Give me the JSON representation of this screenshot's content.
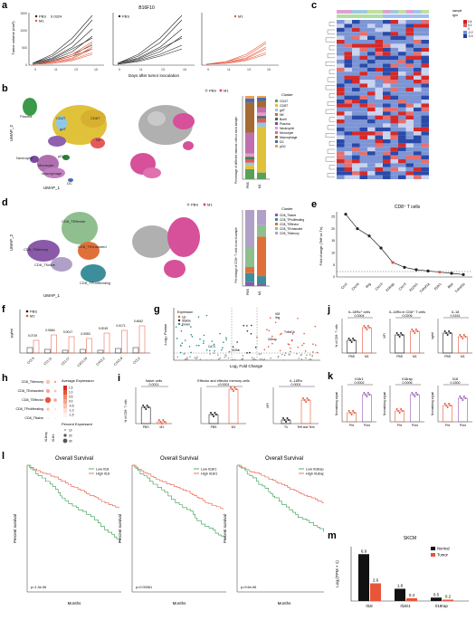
{
  "panels": {
    "a": {
      "letter": "a",
      "title": "B16F10",
      "ylabel": "Tumor volume (mm³)",
      "xlabel": "Days after tumor inoculation",
      "pvalue": "0.0324",
      "legend_pbs": "PBS",
      "legend_m1": "M1",
      "xticks": [
        "9",
        "11",
        "13",
        "15"
      ],
      "yticks": [
        "1500",
        "1000",
        "500",
        "0"
      ]
    },
    "b": {
      "letter": "b",
      "xlabel": "UMAP_1",
      "ylabel": "UMAP_2",
      "labels": [
        "Plasma",
        "CD4T",
        "CD8T",
        "gdT",
        "NK",
        "Neutrophil",
        "pDC",
        "Monocyte",
        "Macrophage",
        "DC"
      ],
      "legend_pbs": "PBS",
      "legend_m1": "M1",
      "bar_ylabel": "Percentage of different immune cells in each sample",
      "cluster_title": "Cluster",
      "clusters": [
        "CD4T",
        "CD8T",
        "gdT",
        "NK",
        "Bcell",
        "Plasma",
        "Neutrophil",
        "Monocyte",
        "Macrophage",
        "DC",
        "pDC"
      ],
      "cluster_colors": [
        "#5aa05a",
        "#e0c23a",
        "#8fc8e6",
        "#e35a5a",
        "#2f7d3a",
        "#7b4aa0",
        "#e0a0c0",
        "#c070b0",
        "#a46a32",
        "#4a6ab0",
        "#f0a050"
      ],
      "bar_x": [
        "PBS",
        "M1"
      ]
    },
    "c": {
      "letter": "c",
      "legend_sample": "sample",
      "legend_type": "type",
      "scale": [
        "0.4",
        "0.2",
        "0",
        "-0.2",
        "-0.4"
      ]
    },
    "d": {
      "letter": "d",
      "xlabel": "UMAP_1",
      "ylabel": "UMAP_2",
      "labels": [
        "CD8_TEffector",
        "CD8_TMemory",
        "CD8_TExhausted",
        "CD8_TNaive",
        "CD8_TProliferating"
      ],
      "legend_pbs": "PBS",
      "legend_m1": "M1",
      "bar_ylabel": "Percentage of CD8+ T cells in each sample",
      "cluster_title": "Cluster",
      "clusters": [
        "CD8_TNaive",
        "CD8_TProliferating",
        "CD8_TEffector",
        "CD8_TExhausted",
        "CD8_TMemory"
      ],
      "cluster_colors": [
        "#8a5aa8",
        "#3c8e9a",
        "#e0703a",
        "#8fbf8f",
        "#b0a0c8"
      ],
      "bar_x": [
        "PBS",
        "M1"
      ]
    },
    "e": {
      "letter": "e",
      "title": "CD8⁺ T cells",
      "ylabel": "Fold change (Teff vs Tn)",
      "genes": [
        "Ccr2",
        "Cxcr6",
        "Ifng",
        "Cxcr3",
        "Il18rap",
        "Cxcr3",
        "Il12rb1",
        "Tnfrsf1a",
        "Il18r1",
        "Il6st",
        "Tnfrsf1b"
      ],
      "values": [
        26,
        20,
        17,
        12,
        6,
        4,
        3,
        2.5,
        2,
        1.5,
        1
      ],
      "yticks": [
        "25",
        "20",
        "15",
        "10",
        "5",
        "0"
      ]
    },
    "f": {
      "letter": "f",
      "ylabel": "pg/ml",
      "legend_pbs": "PBS",
      "legend_m1": "M1",
      "categories": [
        "CCL5",
        "CCL11",
        "CCL17",
        "CXCL10",
        "CXCL2",
        "CXCL9",
        "CCL2"
      ],
      "pvalues": [
        "0.0719",
        "0.0664",
        "0.0017",
        "0.0053",
        "0.0019",
        "0.0171",
        "0.4642"
      ]
    },
    "g": {
      "letter": "g",
      "xlabel": "Log₂ Fold Change",
      "ylabel": "-Log₁₀ Pvalue",
      "legend_title": "Expression",
      "legend_up": "Up",
      "legend_stable": "Stable",
      "legend_down": "Down",
      "genes": [
        "Il18",
        "Ifng",
        "Tnfrsf1b",
        "Il18rap",
        "Cd74",
        "Il12b"
      ]
    },
    "h": {
      "letter": "h",
      "rows": [
        "CD8_TMemory",
        "CD8_TExhausted",
        "CD8_TEffector",
        "CD8_TProliferating",
        "CD8_TNaive"
      ],
      "xlabels": [
        "Il18rap",
        "Il18r1"
      ],
      "avg_title": "Average Expression",
      "avg_ticks": [
        "1.5",
        "1.0",
        "0.5",
        "0.0",
        "-0.5",
        "-1.0",
        "-1.5"
      ],
      "pct_title": "Percent Expressed",
      "pct_ticks": [
        "10",
        "20",
        "30"
      ]
    },
    "i": {
      "letter": "i",
      "titles": [
        "Naive cells",
        "Effector and effector memory cells",
        "IL-18Rα"
      ],
      "pvalues": [
        "0.0021",
        "<0.0001",
        "0.0001"
      ],
      "ylabel": "% of CD8⁺ T cells",
      "ylabel3": "MFI",
      "x1": [
        "PBS",
        "M1"
      ],
      "x3": [
        "Tn",
        "Teff and Tem"
      ]
    },
    "j": {
      "letter": "j",
      "titles": [
        "IL-18Rα⁺ cells",
        "IL-18Rα in CD8⁺ T cells",
        "IL-18"
      ],
      "pvalues": [
        "0.0004",
        "0.0206",
        "0.4161"
      ],
      "ylabels": [
        "% of CD8⁺ T cells",
        "MFI",
        "ng/ml"
      ],
      "x": [
        "PBS",
        "M1"
      ]
    },
    "k": {
      "letter": "k",
      "titles": [
        "Il18r1",
        "Il18rap",
        "Il18"
      ],
      "pvalues": [
        "0.0002",
        "0.0006",
        "0.1500"
      ],
      "ylabel": "Normalizing signal",
      "x": [
        "Pre",
        "Post"
      ]
    },
    "l": {
      "letter": "l",
      "title": "Overall Survival",
      "xlabel": "Months",
      "ylabel": "Percent survival",
      "plots": [
        {
          "low": "Low Il18",
          "high": "High Il18",
          "p": "p=1.3e-06"
        },
        {
          "low": "Low Il18r1",
          "high": "High Il18r1",
          "p": "p=0.00061"
        },
        {
          "low": "Low Il18rap",
          "high": "High Il18rap",
          "p": "p=9.6e-06"
        }
      ]
    },
    "m": {
      "letter": "m",
      "title": "SKCM",
      "ylabel": "Log₂(TPM + 1)",
      "legend_normal": "Normal",
      "legend_tumor": "Tumor",
      "categories": [
        "Il18",
        "Il18r1",
        "Il18rap"
      ],
      "normal": [
        6.9,
        1.8,
        0.5
      ],
      "tumor": [
        2.6,
        0.4,
        0.2
      ],
      "normal_labels": [
        "6.9",
        "1.8",
        "0.5"
      ],
      "tumor_labels": [
        "2.6",
        "0.4",
        "0.2"
      ]
    }
  },
  "chart_data": [
    {
      "type": "bar",
      "title": "SKCM",
      "ylabel": "Log₂(TPM + 1)",
      "categories": [
        "Il18",
        "Il18r1",
        "Il18rap"
      ],
      "series": [
        {
          "name": "Normal",
          "values": [
            6.9,
            1.8,
            0.5
          ]
        },
        {
          "name": "Tumor",
          "values": [
            2.6,
            0.4,
            0.2
          ]
        }
      ]
    },
    {
      "type": "line",
      "title": "CD8⁺ T cells",
      "ylabel": "Fold change (Teff vs Tn)",
      "categories": [
        "Ccr2",
        "Cxcr6",
        "Ifng",
        "Cxcr3",
        "Il18rap",
        "Cxcr3",
        "Il12rb1",
        "Tnfrsf1a",
        "Il18r1",
        "Il6st",
        "Tnfrsf1b"
      ],
      "values": [
        26,
        20,
        17,
        12,
        6,
        4,
        3,
        2.5,
        2,
        1.5,
        1
      ]
    }
  ],
  "colors": {
    "pbs": "#222222",
    "m1": "#e8553a",
    "purple": "#9b59b6",
    "green_line": "#3a9a4a",
    "red_line": "#e8553a"
  }
}
